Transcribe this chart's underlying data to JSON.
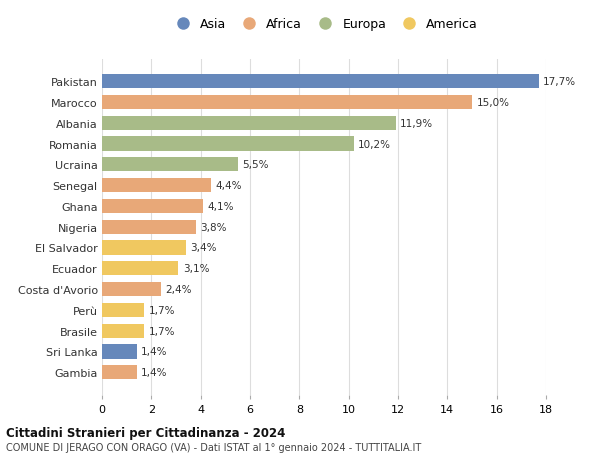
{
  "countries": [
    "Pakistan",
    "Marocco",
    "Albania",
    "Romania",
    "Ucraina",
    "Senegal",
    "Ghana",
    "Nigeria",
    "El Salvador",
    "Ecuador",
    "Costa d'Avorio",
    "Perù",
    "Brasile",
    "Sri Lanka",
    "Gambia"
  ],
  "values": [
    17.7,
    15.0,
    11.9,
    10.2,
    5.5,
    4.4,
    4.1,
    3.8,
    3.4,
    3.1,
    2.4,
    1.7,
    1.7,
    1.4,
    1.4
  ],
  "continents": [
    "Asia",
    "Africa",
    "Europa",
    "Europa",
    "Europa",
    "Africa",
    "Africa",
    "Africa",
    "America",
    "America",
    "Africa",
    "America",
    "America",
    "Asia",
    "Africa"
  ],
  "colors": {
    "Asia": "#6688bb",
    "Africa": "#e8a878",
    "Europa": "#a8bb88",
    "America": "#f0c860"
  },
  "legend_order": [
    "Asia",
    "Africa",
    "Europa",
    "America"
  ],
  "title1": "Cittadini Stranieri per Cittadinanza - 2024",
  "title2": "COMUNE DI JERAGO CON ORAGO (VA) - Dati ISTAT al 1° gennaio 2024 - TUTTITALIA.IT",
  "xlim": [
    0,
    18
  ],
  "xticks": [
    0,
    2,
    4,
    6,
    8,
    10,
    12,
    14,
    16,
    18
  ],
  "bg_color": "#ffffff",
  "grid_color": "#dddddd"
}
